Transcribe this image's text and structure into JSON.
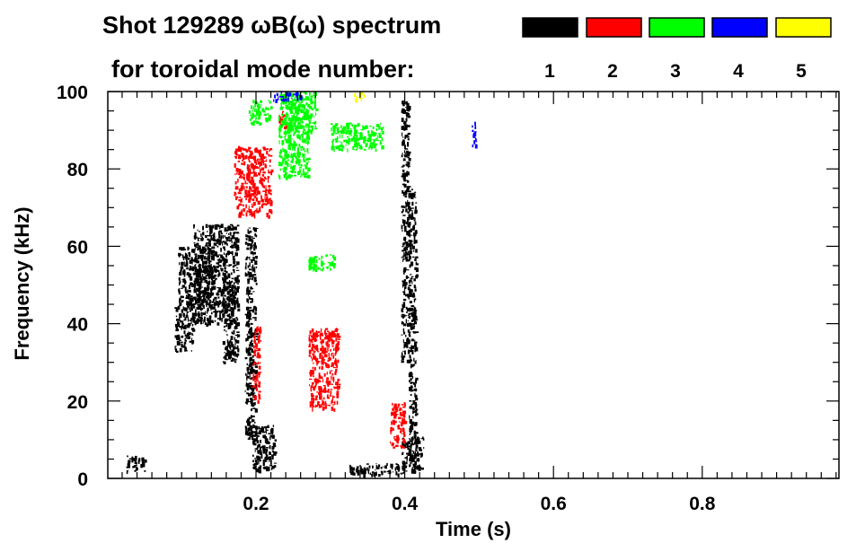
{
  "chart_data": {
    "type": "heatmap",
    "title_line1": "Shot 129289 ωB(ω) spectrum",
    "title_line2": "for toroidal mode number:",
    "xlabel": "Time (s)",
    "ylabel": "Frequency (kHz)",
    "xlim": [
      0.0,
      1.0
    ],
    "ylim": [
      0,
      100
    ],
    "x_ticks": [
      0.2,
      0.4,
      0.6,
      0.8
    ],
    "x_tick_labels": [
      "0.2",
      "0.4",
      "0.6",
      "0.8"
    ],
    "y_ticks": [
      0,
      20,
      40,
      60,
      80,
      100
    ],
    "y_tick_labels": [
      "0",
      "20",
      "40",
      "60",
      "80",
      "100"
    ],
    "grid": false,
    "legend_position": "top-right",
    "legend": [
      {
        "label": "1",
        "color": "#000000"
      },
      {
        "label": "2",
        "color": "#ff0000"
      },
      {
        "label": "3",
        "color": "#00ff00"
      },
      {
        "label": "4",
        "color": "#0000ff"
      },
      {
        "label": "5",
        "color": "#ffff00"
      }
    ],
    "regions": [
      {
        "mode": "1",
        "t": [
          0.09,
          0.115
        ],
        "f": [
          33,
          45
        ]
      },
      {
        "mode": "1",
        "t": [
          0.115,
          0.175
        ],
        "f": [
          40,
          66
        ]
      },
      {
        "mode": "1",
        "t": [
          0.095,
          0.14
        ],
        "f": [
          45,
          60
        ]
      },
      {
        "mode": "1",
        "t": [
          0.155,
          0.175
        ],
        "f": [
          30,
          50
        ]
      },
      {
        "mode": "1",
        "t": [
          0.195,
          0.225
        ],
        "f": [
          2,
          14
        ]
      },
      {
        "mode": "1",
        "t": [
          0.185,
          0.2
        ],
        "f": [
          10,
          65
        ]
      },
      {
        "mode": "1",
        "t": [
          0.325,
          0.4
        ],
        "f": [
          1,
          4
        ]
      },
      {
        "mode": "1",
        "t": [
          0.395,
          0.425
        ],
        "f": [
          2,
          11
        ]
      },
      {
        "mode": "1",
        "t": [
          0.395,
          0.405
        ],
        "f": [
          30,
          98
        ]
      },
      {
        "mode": "1",
        "t": [
          0.405,
          0.415
        ],
        "f": [
          5,
          75
        ]
      },
      {
        "mode": "1",
        "t": [
          0.025,
          0.05
        ],
        "f": [
          2,
          6
        ]
      },
      {
        "mode": "2",
        "t": [
          0.17,
          0.22
        ],
        "f": [
          68,
          86
        ]
      },
      {
        "mode": "2",
        "t": [
          0.27,
          0.31
        ],
        "f": [
          18,
          39
        ]
      },
      {
        "mode": "2",
        "t": [
          0.23,
          0.24
        ],
        "f": [
          90,
          95
        ]
      },
      {
        "mode": "2",
        "t": [
          0.195,
          0.205
        ],
        "f": [
          20,
          40
        ]
      },
      {
        "mode": "2",
        "t": [
          0.38,
          0.4
        ],
        "f": [
          8,
          20
        ]
      },
      {
        "mode": "3",
        "t": [
          0.23,
          0.27
        ],
        "f": [
          78,
          100
        ]
      },
      {
        "mode": "3",
        "t": [
          0.27,
          0.305
        ],
        "f": [
          54,
          58
        ]
      },
      {
        "mode": "3",
        "t": [
          0.3,
          0.37
        ],
        "f": [
          85,
          92
        ]
      },
      {
        "mode": "3",
        "t": [
          0.19,
          0.22
        ],
        "f": [
          92,
          98
        ]
      },
      {
        "mode": "3",
        "t": [
          0.24,
          0.28
        ],
        "f": [
          90,
          100
        ]
      },
      {
        "mode": "4",
        "t": [
          0.49,
          0.495
        ],
        "f": [
          86,
          94
        ]
      },
      {
        "mode": "4",
        "t": [
          0.22,
          0.26
        ],
        "f": [
          98,
          100
        ]
      },
      {
        "mode": "5",
        "t": [
          0.33,
          0.345
        ],
        "f": [
          98,
          100
        ]
      }
    ]
  }
}
